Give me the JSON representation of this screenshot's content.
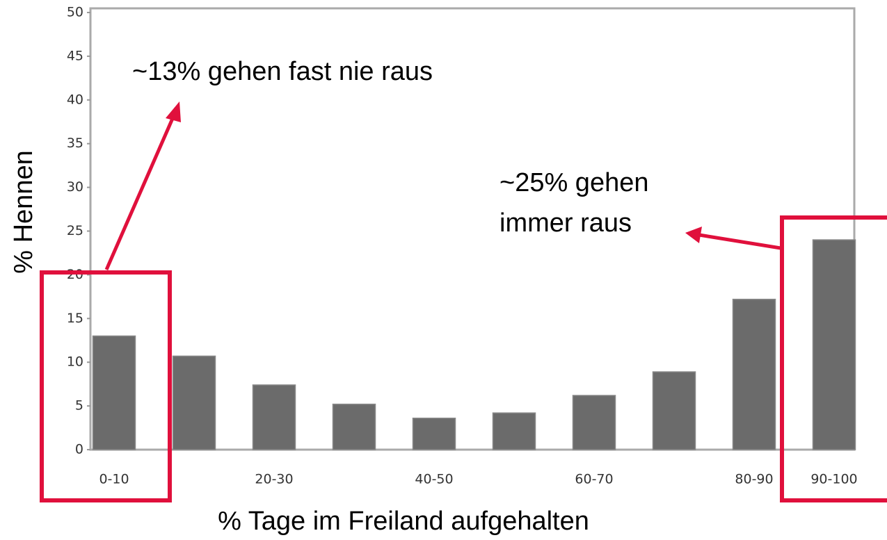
{
  "chart_data": {
    "type": "bar",
    "x_label": "% Tage im Freiland aufgehalten",
    "y_label": "% Hennen",
    "categories": [
      "0-10",
      null,
      "20-30",
      null,
      "40-50",
      null,
      "60-70",
      null,
      "80-90",
      "90-100"
    ],
    "values": [
      13,
      10.7,
      7.4,
      5.2,
      3.6,
      4.2,
      6.2,
      8.9,
      17.2,
      24
    ],
    "color": "#6b6b6b",
    "ylim": [
      0,
      50
    ],
    "yticks": [
      0,
      5,
      10,
      15,
      20,
      25,
      30,
      35,
      40,
      45,
      50
    ],
    "grid": false,
    "annotations": [
      {
        "lines": [
          "~13% gehen fast nie raus"
        ]
      },
      {
        "lines": [
          "~25% gehen",
          "immer raus"
        ]
      }
    ]
  }
}
